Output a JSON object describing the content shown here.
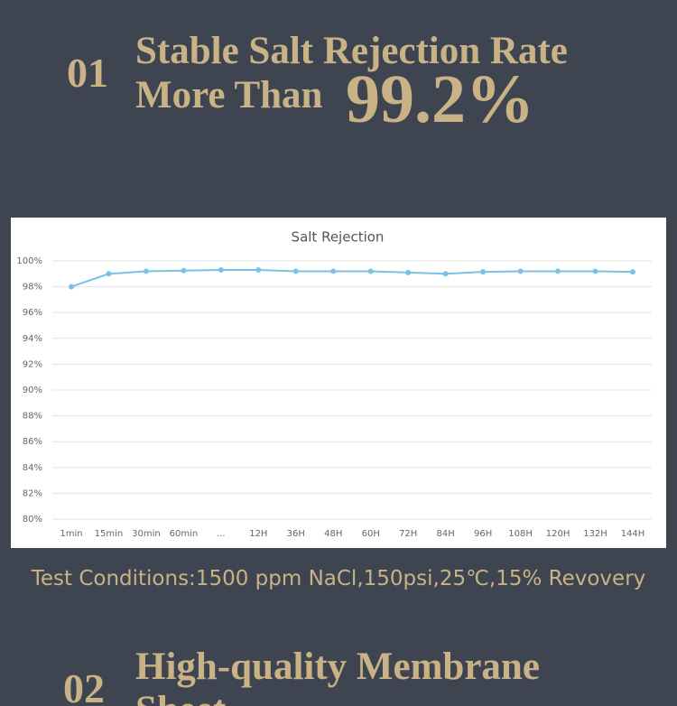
{
  "section1": {
    "number": "01",
    "title_line1": "Stable Salt Rejection Rate",
    "title_line2": "More Than",
    "highlight": "99.2%"
  },
  "chart_data": {
    "type": "line",
    "title": "Salt Rejection",
    "categories": [
      "1min",
      "15min",
      "30min",
      "60min",
      "...",
      "12H",
      "36H",
      "48H",
      "60H",
      "72H",
      "84H",
      "96H",
      "108H",
      "120H",
      "132H",
      "144H"
    ],
    "series": [
      {
        "name": "Salt Rejection",
        "color": "#7cc0e8",
        "values": [
          98.0,
          99.0,
          99.2,
          99.25,
          99.3,
          99.3,
          99.2,
          99.2,
          99.2,
          99.1,
          99.0,
          99.15,
          99.2,
          99.2,
          99.2,
          99.15
        ]
      }
    ],
    "ylim": [
      80,
      100
    ],
    "yticks": [
      {
        "value": 80,
        "label": "80%"
      },
      {
        "value": 82,
        "label": "82%"
      },
      {
        "value": 84,
        "label": "84%"
      },
      {
        "value": 86,
        "label": "86%"
      },
      {
        "value": 88,
        "label": "88%"
      },
      {
        "value": 90,
        "label": "90%"
      },
      {
        "value": 92,
        "label": "92%"
      },
      {
        "value": 94,
        "label": "94%"
      },
      {
        "value": 96,
        "label": "96%"
      },
      {
        "value": 98,
        "label": "98%"
      },
      {
        "value": 100,
        "label": "100%"
      }
    ],
    "grid": true
  },
  "test_conditions": "Test Conditions:1500 ppm NaCl,150psi,25℃,15% Revovery",
  "section2": {
    "number": "02",
    "title_line1": "High-quality Membrane",
    "title_line2": "Sheet"
  }
}
